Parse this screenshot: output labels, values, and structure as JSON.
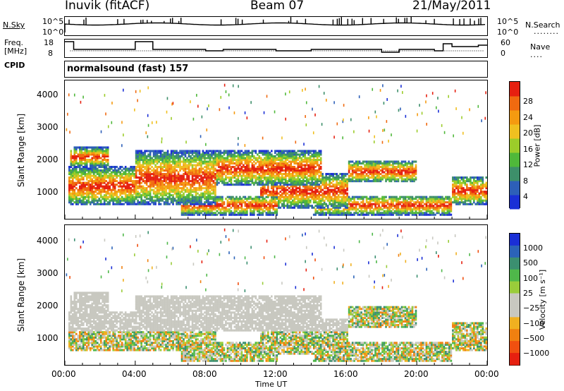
{
  "header": {
    "station": "Inuvik (fitACF)",
    "beam": "Beam 07",
    "date": "21/May/2011"
  },
  "top_panels": {
    "nsky_label": "N.Sky",
    "nsky_left_ticks": [
      "10^5",
      "10^0"
    ],
    "nsky_right_ticks": [
      "10^5",
      "10^0"
    ],
    "nsearch_label": "N.Search",
    "freq_label_line1": "Freq.",
    "freq_label_line2": "[MHz]",
    "freq_ticks": [
      "18",
      "8"
    ],
    "nave_ticks": [
      "60",
      "0"
    ],
    "nave_label": "Nave",
    "cpid_label": "CPID",
    "cpid_value": "normalsound (fast) 157"
  },
  "colors": {
    "power_scale": [
      "#1a2fd6",
      "#2d5fb8",
      "#3d8f6a",
      "#4fb83a",
      "#9ccc2a",
      "#f0c020",
      "#f59a10",
      "#f06a10",
      "#e62010"
    ],
    "velocity_scale": [
      "#1a2fd6",
      "#2b63b8",
      "#3b8f70",
      "#4fb84a",
      "#9acc3a",
      "#c8c8c0",
      "#c8c8c0",
      "#f0b020",
      "#f08010",
      "#f05010",
      "#e62010"
    ],
    "ground_scatter": "#c8c8c0"
  },
  "chart_data": [
    {
      "type": "heatmap",
      "title": "Power",
      "ylabel": "Slant Range [km]",
      "xlabel": "",
      "ylim": [
        200,
        4500
      ],
      "yticks": [
        "1000",
        "2000",
        "3000",
        "4000"
      ],
      "colorbar_label": "Power [dB]",
      "colorbar_ticks": [
        "28",
        "24",
        "20",
        "16",
        "12",
        "8",
        "4"
      ],
      "colorbar_range": [
        0,
        30
      ],
      "scatter_bands": [
        {
          "t0": 0.2,
          "t1": 4.0,
          "r0": 600,
          "r1": 1800
        },
        {
          "t0": 0.3,
          "t1": 2.5,
          "r0": 1800,
          "r1": 2400
        },
        {
          "t0": 4.0,
          "t1": 8.5,
          "r0": 600,
          "r1": 2300
        },
        {
          "t0": 6.5,
          "t1": 12.0,
          "r0": 300,
          "r1": 900
        },
        {
          "t0": 8.5,
          "t1": 14.5,
          "r0": 1200,
          "r1": 2300
        },
        {
          "t0": 11.0,
          "t1": 16.0,
          "r0": 500,
          "r1": 1600
        },
        {
          "t0": 14.0,
          "t1": 22.0,
          "r0": 300,
          "r1": 900
        },
        {
          "t0": 16.0,
          "t1": 20.0,
          "r0": 1300,
          "r1": 2000
        },
        {
          "t0": 22.0,
          "t1": 24.0,
          "r0": 600,
          "r1": 1500
        }
      ]
    },
    {
      "type": "heatmap",
      "title": "Velocity",
      "ylabel": "Slant Range [km]",
      "xlabel": "Time UT",
      "ylim": [
        200,
        4500
      ],
      "yticks": [
        "1000",
        "2000",
        "3000",
        "4000"
      ],
      "xticks": [
        "00:00",
        "04:00",
        "08:00",
        "12:00",
        "16:00",
        "20:00",
        "00:00"
      ],
      "colorbar_label": "Velocity [m s⁻¹]",
      "colorbar_ticks": [
        "1000",
        "500",
        "100",
        "25",
        "−25",
        "−100",
        "−500",
        "−1000"
      ],
      "colorbar_range": [
        -1000,
        1000
      ]
    }
  ]
}
